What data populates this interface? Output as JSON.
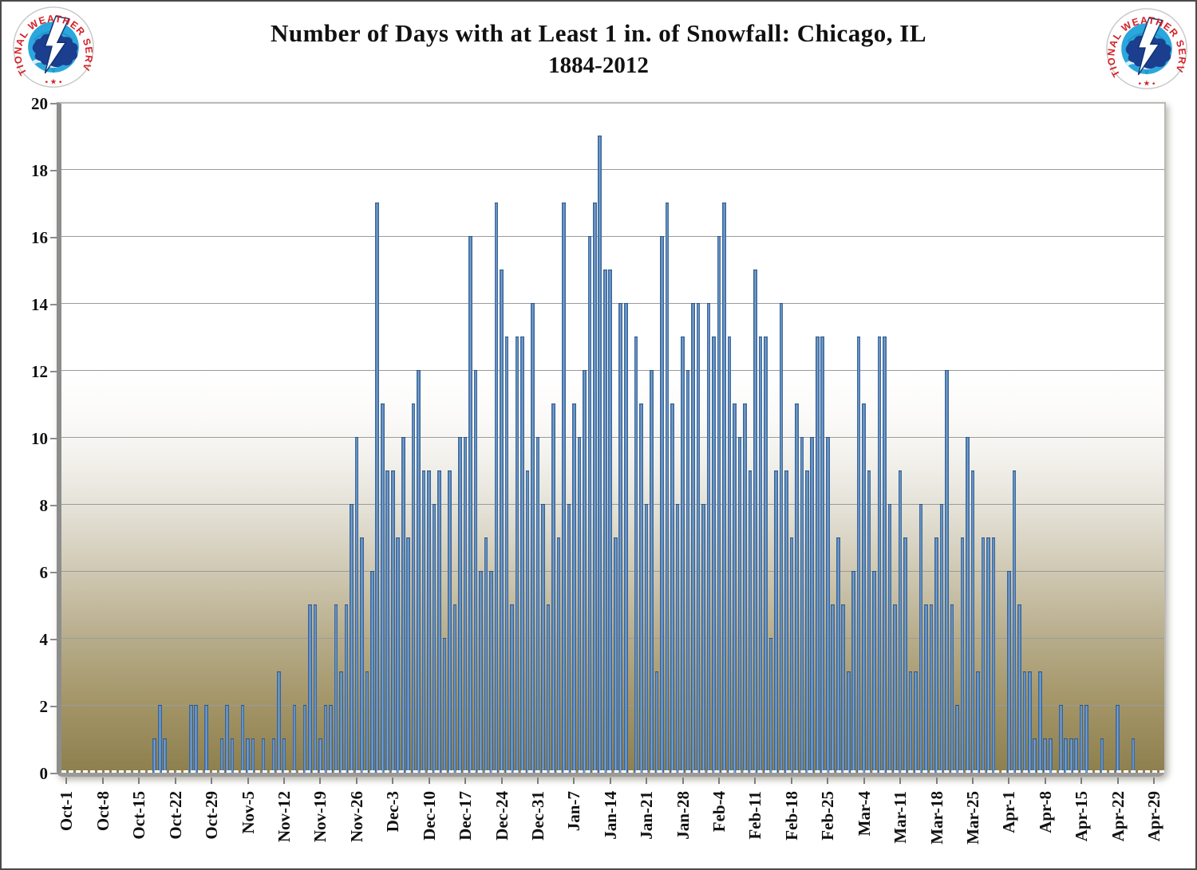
{
  "header": {
    "title_line1": "Number of Days with at Least 1 in. of Snowfall:  Chicago, IL",
    "title_line2": "1884-2012",
    "logo": {
      "ring_text": "NATIONAL WEATHER SERVICE",
      "stars": "• ★ •",
      "colors": {
        "ring_red": "#d42127",
        "globe_blue": "#2aa7dc",
        "cloud_navy": "#1c3e8e",
        "bolt_white": "#ffffff",
        "wave_light": "#d8f1fc"
      }
    }
  },
  "chart_data": {
    "type": "bar",
    "title": "Number of Days with at Least 1 in. of Snowfall:  Chicago, IL",
    "subtitle": "1884-2012",
    "xlabel": "",
    "ylabel": "",
    "ylim": [
      0,
      20
    ],
    "ytick_step": 2,
    "y_tick_labels": [
      "20",
      "18",
      "16",
      "14",
      "12",
      "10",
      "8",
      "6",
      "4",
      "2",
      "0"
    ],
    "grid": "horizontal",
    "legend": "none",
    "x_tick_labels": [
      "Oct-1",
      "Oct-8",
      "Oct-15",
      "Oct-22",
      "Oct-29",
      "Nov-5",
      "Nov-12",
      "Nov-19",
      "Nov-26",
      "Dec-3",
      "Dec-10",
      "Dec-17",
      "Dec-24",
      "Dec-31",
      "Jan-7",
      "Jan-14",
      "Jan-21",
      "Jan-28",
      "Feb-4",
      "Feb-11",
      "Feb-18",
      "Feb-25",
      "Mar-4",
      "Mar-11",
      "Mar-18",
      "Mar-25",
      "Apr-1",
      "Apr-8",
      "Apr-15",
      "Apr-22",
      "Apr-29"
    ],
    "x_tick_interval_days": 7,
    "dates": [
      "Oct-1",
      "Oct-2",
      "Oct-3",
      "Oct-4",
      "Oct-5",
      "Oct-6",
      "Oct-7",
      "Oct-8",
      "Oct-9",
      "Oct-10",
      "Oct-11",
      "Oct-12",
      "Oct-13",
      "Oct-14",
      "Oct-15",
      "Oct-16",
      "Oct-17",
      "Oct-18",
      "Oct-19",
      "Oct-20",
      "Oct-21",
      "Oct-22",
      "Oct-23",
      "Oct-24",
      "Oct-25",
      "Oct-26",
      "Oct-27",
      "Oct-28",
      "Oct-29",
      "Oct-30",
      "Oct-31",
      "Nov-1",
      "Nov-2",
      "Nov-3",
      "Nov-4",
      "Nov-5",
      "Nov-6",
      "Nov-7",
      "Nov-8",
      "Nov-9",
      "Nov-10",
      "Nov-11",
      "Nov-12",
      "Nov-13",
      "Nov-14",
      "Nov-15",
      "Nov-16",
      "Nov-17",
      "Nov-18",
      "Nov-19",
      "Nov-20",
      "Nov-21",
      "Nov-22",
      "Nov-23",
      "Nov-24",
      "Nov-25",
      "Nov-26",
      "Nov-27",
      "Nov-28",
      "Nov-29",
      "Nov-30",
      "Dec-1",
      "Dec-2",
      "Dec-3",
      "Dec-4",
      "Dec-5",
      "Dec-6",
      "Dec-7",
      "Dec-8",
      "Dec-9",
      "Dec-10",
      "Dec-11",
      "Dec-12",
      "Dec-13",
      "Dec-14",
      "Dec-15",
      "Dec-16",
      "Dec-17",
      "Dec-18",
      "Dec-19",
      "Dec-20",
      "Dec-21",
      "Dec-22",
      "Dec-23",
      "Dec-24",
      "Dec-25",
      "Dec-26",
      "Dec-27",
      "Dec-28",
      "Dec-29",
      "Dec-30",
      "Dec-31",
      "Jan-1",
      "Jan-2",
      "Jan-3",
      "Jan-4",
      "Jan-5",
      "Jan-6",
      "Jan-7",
      "Jan-8",
      "Jan-9",
      "Jan-10",
      "Jan-11",
      "Jan-12",
      "Jan-13",
      "Jan-14",
      "Jan-15",
      "Jan-16",
      "Jan-17",
      "Jan-18",
      "Jan-19",
      "Jan-20",
      "Jan-21",
      "Jan-22",
      "Jan-23",
      "Jan-24",
      "Jan-25",
      "Jan-26",
      "Jan-27",
      "Jan-28",
      "Jan-29",
      "Jan-30",
      "Jan-31",
      "Feb-1",
      "Feb-2",
      "Feb-3",
      "Feb-4",
      "Feb-5",
      "Feb-6",
      "Feb-7",
      "Feb-8",
      "Feb-9",
      "Feb-10",
      "Feb-11",
      "Feb-12",
      "Feb-13",
      "Feb-14",
      "Feb-15",
      "Feb-16",
      "Feb-17",
      "Feb-18",
      "Feb-19",
      "Feb-20",
      "Feb-21",
      "Feb-22",
      "Feb-23",
      "Feb-24",
      "Feb-25",
      "Feb-26",
      "Feb-27",
      "Feb-28",
      "Mar-1",
      "Mar-2",
      "Mar-3",
      "Mar-4",
      "Mar-5",
      "Mar-6",
      "Mar-7",
      "Mar-8",
      "Mar-9",
      "Mar-10",
      "Mar-11",
      "Mar-12",
      "Mar-13",
      "Mar-14",
      "Mar-15",
      "Mar-16",
      "Mar-17",
      "Mar-18",
      "Mar-19",
      "Mar-20",
      "Mar-21",
      "Mar-22",
      "Mar-23",
      "Mar-24",
      "Mar-25",
      "Mar-26",
      "Mar-27",
      "Mar-28",
      "Mar-29",
      "Mar-30",
      "Mar-31",
      "Apr-1",
      "Apr-2",
      "Apr-3",
      "Apr-4",
      "Apr-5",
      "Apr-6",
      "Apr-7",
      "Apr-8",
      "Apr-9",
      "Apr-10",
      "Apr-11",
      "Apr-12",
      "Apr-13",
      "Apr-14",
      "Apr-15",
      "Apr-16",
      "Apr-17",
      "Apr-18",
      "Apr-19",
      "Apr-20",
      "Apr-21",
      "Apr-22",
      "Apr-23",
      "Apr-24",
      "Apr-25",
      "Apr-26",
      "Apr-27",
      "Apr-28",
      "Apr-29",
      "Apr-30"
    ],
    "values": [
      0,
      0,
      0,
      0,
      0,
      0,
      0,
      0,
      0,
      0,
      0,
      0,
      0,
      0,
      0,
      0,
      0,
      1,
      2,
      1,
      0,
      0,
      0,
      0,
      2,
      2,
      0,
      2,
      0,
      0,
      1,
      2,
      1,
      0,
      2,
      1,
      1,
      0,
      1,
      0,
      1,
      3,
      1,
      0,
      2,
      0,
      2,
      5,
      5,
      1,
      2,
      2,
      5,
      3,
      5,
      8,
      10,
      7,
      3,
      6,
      17,
      11,
      9,
      9,
      7,
      10,
      7,
      11,
      12,
      9,
      9,
      8,
      9,
      4,
      9,
      5,
      10,
      10,
      16,
      12,
      6,
      7,
      6,
      17,
      15,
      13,
      5,
      13,
      13,
      9,
      14,
      10,
      8,
      5,
      11,
      7,
      17,
      8,
      11,
      10,
      12,
      16,
      17,
      19,
      15,
      15,
      7,
      14,
      14,
      0,
      13,
      11,
      8,
      12,
      3,
      16,
      17,
      11,
      8,
      13,
      12,
      14,
      14,
      8,
      14,
      13,
      16,
      17,
      13,
      11,
      10,
      11,
      9,
      15,
      13,
      13,
      4,
      9,
      14,
      9,
      7,
      11,
      10,
      9,
      10,
      13,
      13,
      10,
      5,
      7,
      5,
      3,
      6,
      13,
      11,
      9,
      6,
      13,
      13,
      8,
      5,
      9,
      7,
      3,
      3,
      8,
      5,
      5,
      7,
      8,
      12,
      5,
      2,
      7,
      10,
      9,
      3,
      7,
      7,
      7,
      0,
      0,
      6,
      9,
      5,
      3,
      3,
      1,
      3,
      1,
      1,
      0,
      2,
      1,
      1,
      1,
      2,
      2,
      0,
      0,
      1,
      0,
      0,
      2,
      0,
      0,
      1,
      0,
      0,
      0,
      0,
      0
    ],
    "colors": {
      "bar_fill": "#4e7cb0",
      "bar_edge": "#30598c",
      "bar_highlight": "#87add6",
      "gridline": "#9b9b9b",
      "axis": "#8d8d8d",
      "plot_bg_top": "#ffffff",
      "plot_bg_bottom": "#8e7f4e",
      "text": "#111111"
    }
  }
}
